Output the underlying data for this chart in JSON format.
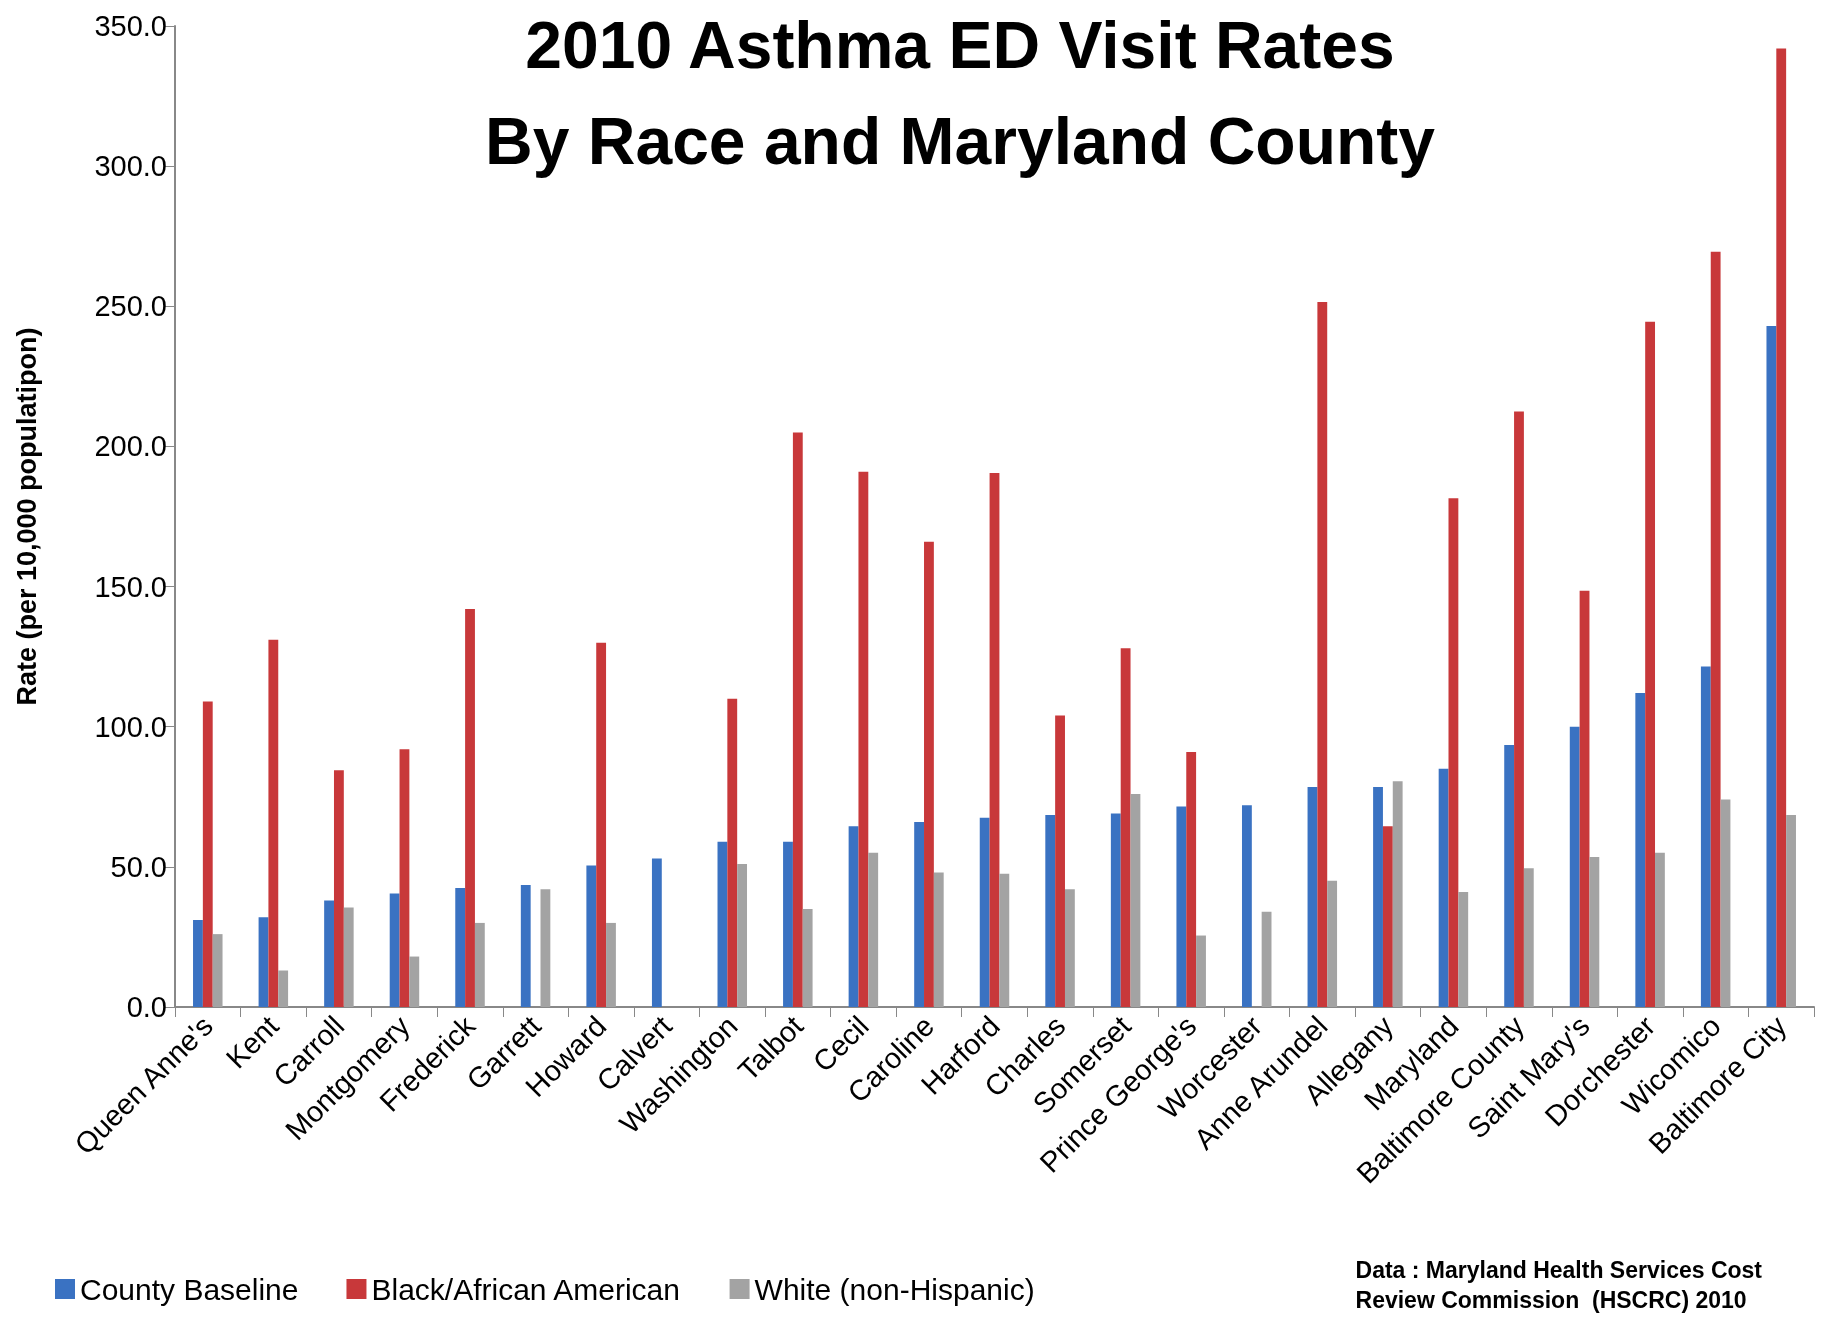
{
  "chart_data": {
    "type": "bar",
    "title": "2010 Asthma ED Visit Rates\nBy Race and Maryland County",
    "ylabel": "Rate (per 10,000 populatipon)",
    "categories": [
      "Queen Anne's",
      "Kent",
      "Carroll",
      "Montgomery",
      "Frederick",
      "Garrett",
      "Howard",
      "Calvert",
      "Washington",
      "Talbot",
      "Cecil",
      "Caroline",
      "Harford",
      "Charles",
      "Somerset",
      "Prince George's",
      "Worcester",
      "Anne Arundel",
      "Allegany",
      "Maryland",
      "Baltimore County",
      "Saint Mary's",
      "Dorchester",
      "Wicomico",
      "Baltimore City"
    ],
    "series": [
      {
        "name": "County Baseline",
        "color": "#3a72c2",
        "values": [
          31,
          32,
          38,
          40.5,
          42.5,
          43.5,
          50.5,
          53,
          59,
          59,
          64.5,
          66,
          67.5,
          68.5,
          69,
          71.5,
          72,
          78.5,
          78.5,
          85,
          93.5,
          100,
          112,
          121.5,
          243
        ]
      },
      {
        "name": "Black/African American",
        "color": "#c8383a",
        "values": [
          109,
          131,
          84.5,
          92,
          142,
          null,
          130,
          null,
          110,
          205,
          191,
          166,
          190.5,
          104,
          128,
          91,
          null,
          251.5,
          64.5,
          181.5,
          212.5,
          148.5,
          244.5,
          269.5,
          342
        ]
      },
      {
        "name": "White (non-Hispanic)",
        "color": "#a3a3a3",
        "values": [
          26,
          13,
          35.5,
          18,
          30,
          42,
          30,
          null,
          51,
          35,
          55,
          48,
          47.5,
          42,
          76,
          25.5,
          34,
          45,
          80.5,
          41,
          49.5,
          53.5,
          55,
          74,
          68.5
        ]
      }
    ],
    "ylim": [
      0,
      350
    ],
    "yticks": [
      {
        "value": 0,
        "label": "0.0"
      },
      {
        "value": 50,
        "label": "50.0"
      },
      {
        "value": 100,
        "label": "100.0"
      },
      {
        "value": 150,
        "label": "150.0"
      },
      {
        "value": 200,
        "label": "200.0"
      },
      {
        "value": 250,
        "label": "250.0"
      },
      {
        "value": 300,
        "label": "300.0"
      },
      {
        "value": 350,
        "label": "350.0"
      }
    ],
    "grid": false,
    "legend": "bottom left",
    "annotations": [
      "Data : Maryland Health Services Cost\nReview Commission  (HSCRC) 2010"
    ]
  }
}
